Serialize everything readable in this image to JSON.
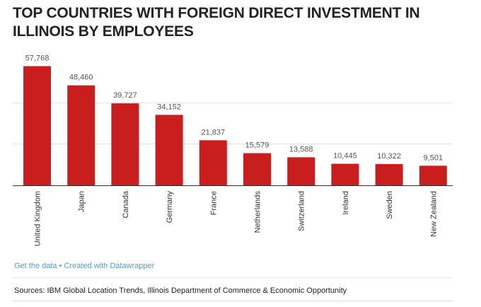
{
  "title": "TOP COUNTRIES WITH FOREIGN DIRECT INVESTMENT IN ILLINOIS BY EMPLOYEES",
  "footer": {
    "get_data": "Get the data",
    "separator": " • ",
    "created_with": "Created with Datawrapper",
    "sources": "Sources: IBM Global Location Trends, Illinois Department of Commerce & Economic Opportunity"
  },
  "colors": {
    "bar": "#c81e1e",
    "link": "#4e9cc8",
    "grid": "#e0e0e0"
  },
  "chart_data": {
    "type": "bar",
    "categories": [
      "United Kingdom",
      "Japan",
      "Canada",
      "Germany",
      "France",
      "Netherlands",
      "Switzerland",
      "Ireland",
      "Sweden",
      "New Zealand"
    ],
    "values": [
      57768,
      48460,
      39727,
      34152,
      21837,
      15579,
      13588,
      10445,
      10322,
      9501
    ],
    "value_labels": [
      "57,768",
      "48,460",
      "39,727",
      "34,152",
      "21,837",
      "15,579",
      "13,588",
      "10,445",
      "10,322",
      "9,501"
    ],
    "ylim": [
      0,
      60000
    ],
    "grid": true,
    "title": "TOP COUNTRIES WITH FOREIGN DIRECT INVESTMENT IN ILLINOIS BY EMPLOYEES"
  }
}
